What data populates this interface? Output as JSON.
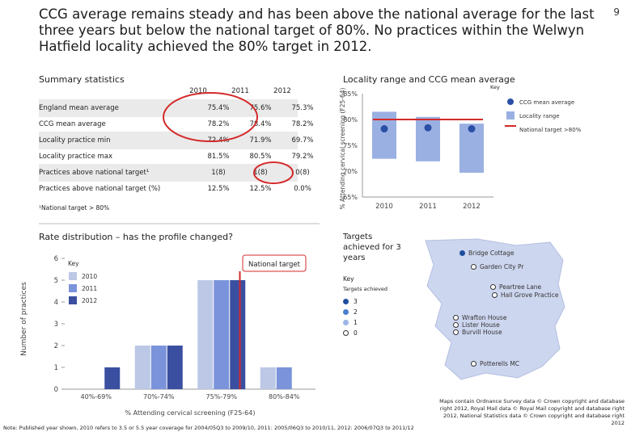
{
  "headline": "CCG average remains steady and has been above the national average for the last three years but below the national target of 80%. No practices within the Welwyn Hatfield locality achieved the 80% target in 2012.",
  "page_number": "9",
  "summary": {
    "title": "Summary statistics",
    "years": [
      "2010",
      "2011",
      "2012"
    ],
    "rows": [
      {
        "label": "England mean average",
        "values": [
          "75.4%",
          "75.6%",
          "75.3%"
        ]
      },
      {
        "label": "CCG mean average",
        "values": [
          "78.2%",
          "78.4%",
          "78.2%"
        ]
      },
      {
        "label": "Locality practice min",
        "values": [
          "72.4%",
          "71.9%",
          "69.7%"
        ]
      },
      {
        "label": "Locality practice max",
        "values": [
          "81.5%",
          "80.5%",
          "79.2%"
        ]
      },
      {
        "label": "Practices above national target¹",
        "values": [
          "1(8)",
          "1(8)",
          "0(8)"
        ]
      },
      {
        "label": "Practices above national target (%)",
        "values": [
          "12.5%",
          "12.5%",
          "0.0%"
        ]
      }
    ],
    "footnote": "¹National target > 80%"
  },
  "chart_data": [
    {
      "type": "bar",
      "title": "Locality range and CCG mean average",
      "ylabel": "% Attending cervical screening (F25-64)",
      "categories": [
        "2010",
        "2011",
        "2012"
      ],
      "ylim": [
        65,
        80
      ],
      "yticks": [
        "65%",
        "70%",
        "75%",
        "80%",
        "85%"
      ],
      "series": [
        {
          "name": "CCG mean average",
          "values": [
            78.2,
            78.4,
            78.2
          ]
        },
        {
          "name": "Locality range",
          "ranges": [
            [
              72.4,
              81.5
            ],
            [
              71.9,
              80.5
            ],
            [
              69.7,
              79.2
            ]
          ]
        },
        {
          "name": "National target >80%",
          "value": 80
        }
      ],
      "legend_title": "Key",
      "legend": [
        "CCG mean average",
        "Locality range",
        "National target >80%"
      ]
    },
    {
      "type": "bar",
      "title": "Rate distribution – has the profile changed?",
      "xlabel": "% Attending cervical screening (F25-64)",
      "ylabel": "Number of practices",
      "categories": [
        "40%-69%",
        "70%-74%",
        "75%-79%",
        "80%-84%"
      ],
      "ylim": [
        0,
        6
      ],
      "yticks": [
        "0",
        "1",
        "2",
        "3",
        "4",
        "5",
        "6"
      ],
      "series": [
        {
          "name": "2010",
          "values": [
            0,
            2,
            5,
            1
          ]
        },
        {
          "name": "2011",
          "values": [
            0,
            2,
            5,
            1
          ]
        },
        {
          "name": "2012",
          "values": [
            1,
            2,
            5,
            0
          ]
        }
      ],
      "legend_title": "Key",
      "annotation": "National target"
    }
  ],
  "map": {
    "title": "Targets achieved for 3 years",
    "key_title": "Key",
    "key_subtitle": "Targets achieved",
    "key_items": [
      "3",
      "2",
      "1",
      "0"
    ],
    "practices": [
      "Bridge Cottage",
      "Garden City Pr",
      "Peartree Lane",
      "Hall Grove Practice",
      "Wrafton House",
      "Lister House",
      "Burvill House",
      "Potterells MC"
    ],
    "colors": {
      "3": "#1f4e9e",
      "2": "#4a7fd0",
      "1": "#9bb6e6",
      "0": "#ffffff"
    }
  },
  "copyright": "Maps contain Ordnance Survey data © Crown copyright and database right 2012, Royal Mail data © Royal Mail copyright and database right 2012, National Statistics data © Crown copyright and database right 2012",
  "note": "Note: Published year shown, 2010 refers to 3.5 or 5.5 year coverage for 2004/05Q3 to 2009/10, 2011: 2005/06Q3 to 2010/11, 2012: 2006/07Q3 to 2011/12",
  "colors": {
    "accent_red": "#d42a2a",
    "bar_light": "#9ab0e2",
    "series_2010": "#bcc8e6",
    "series_2011": "#7b93db",
    "series_2012": "#3a4fa0",
    "mean_dot": "#2a4fa4"
  }
}
